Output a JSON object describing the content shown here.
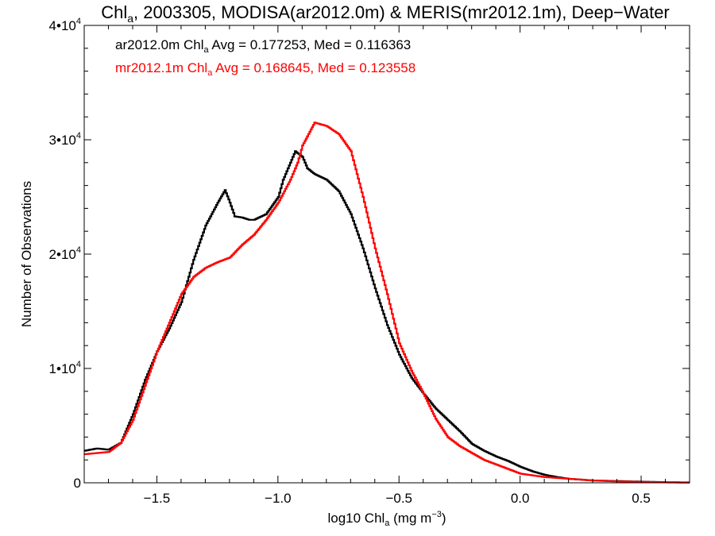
{
  "chart_data": {
    "type": "line",
    "title": {
      "pre": "Chl",
      "sub": "a",
      "post": ", 2003305, MODISA(ar2012.0m) & MERIS(mr2012.1m), Deep−Water"
    },
    "xlabel": {
      "pre": "log10 Chl",
      "sub": "a",
      "post": " (mg m",
      "sup": "−3",
      "end": ")"
    },
    "ylabel": "Number of Observations",
    "xlim": [
      -1.8,
      0.7
    ],
    "ylim": [
      0,
      40000
    ],
    "x_ticks": [
      {
        "value": -1.5,
        "label": "−1.5"
      },
      {
        "value": -1.0,
        "label": "−1.0"
      },
      {
        "value": -0.5,
        "label": "−0.5"
      },
      {
        "value": 0.0,
        "label": "0.0"
      },
      {
        "value": 0.5,
        "label": "0.5"
      }
    ],
    "y_ticks": [
      {
        "value": 0,
        "mant": "0",
        "exp": ""
      },
      {
        "value": 10000,
        "mant": "1•10",
        "exp": "4"
      },
      {
        "value": 20000,
        "mant": "2•10",
        "exp": "4"
      },
      {
        "value": 30000,
        "mant": "3•10",
        "exp": "4"
      },
      {
        "value": 40000,
        "mant": "4•10",
        "exp": "4"
      }
    ],
    "grid": false,
    "legend_placement": "top-left",
    "series": [
      {
        "name": "ar2012.0m",
        "label": {
          "pre": "ar2012.0m Chl",
          "sub": "a",
          "post": " Avg = 0.177253, Med = 0.116363"
        },
        "color": "#000000",
        "x": [
          -1.8,
          -1.75,
          -1.7,
          -1.65,
          -1.6,
          -1.55,
          -1.5,
          -1.45,
          -1.4,
          -1.35,
          -1.3,
          -1.25,
          -1.22,
          -1.2,
          -1.18,
          -1.15,
          -1.12,
          -1.1,
          -1.05,
          -1.0,
          -0.98,
          -0.95,
          -0.93,
          -0.9,
          -0.88,
          -0.85,
          -0.8,
          -0.75,
          -0.7,
          -0.65,
          -0.6,
          -0.55,
          -0.5,
          -0.45,
          -0.4,
          -0.35,
          -0.3,
          -0.25,
          -0.2,
          -0.15,
          -0.1,
          -0.05,
          0.0,
          0.05,
          0.1,
          0.15,
          0.2,
          0.3,
          0.4,
          0.5,
          0.6,
          0.7
        ],
        "y": [
          2800,
          3000,
          2900,
          3500,
          6000,
          9000,
          11500,
          13500,
          15800,
          19500,
          22500,
          24500,
          25600,
          24500,
          23300,
          23200,
          23000,
          23000,
          23500,
          25000,
          26500,
          28000,
          29000,
          28500,
          27500,
          27000,
          26500,
          25500,
          23500,
          20500,
          17000,
          13800,
          11200,
          9200,
          7800,
          6500,
          5500,
          4500,
          3400,
          2800,
          2300,
          1900,
          1400,
          1000,
          700,
          500,
          350,
          200,
          150,
          100,
          50,
          30
        ]
      },
      {
        "name": "mr2012.1m",
        "label": {
          "pre": "mr2012.1m Chl",
          "sub": "a",
          "post": " Avg = 0.168645, Med = 0.123558"
        },
        "color": "#ff0000",
        "x": [
          -1.8,
          -1.75,
          -1.7,
          -1.65,
          -1.6,
          -1.55,
          -1.5,
          -1.45,
          -1.4,
          -1.35,
          -1.3,
          -1.25,
          -1.2,
          -1.15,
          -1.1,
          -1.05,
          -1.0,
          -0.95,
          -0.92,
          -0.9,
          -0.85,
          -0.8,
          -0.75,
          -0.7,
          -0.65,
          -0.6,
          -0.55,
          -0.5,
          -0.45,
          -0.4,
          -0.35,
          -0.3,
          -0.25,
          -0.2,
          -0.15,
          -0.1,
          -0.05,
          0.0,
          0.05,
          0.1,
          0.2,
          0.3,
          0.4,
          0.5,
          0.6,
          0.7
        ],
        "y": [
          2500,
          2600,
          2700,
          3500,
          5500,
          8500,
          11500,
          14000,
          16500,
          18000,
          18800,
          19300,
          19700,
          20800,
          21700,
          23000,
          24500,
          26500,
          28000,
          29500,
          31500,
          31200,
          30500,
          29000,
          25000,
          20500,
          16500,
          12200,
          9800,
          7800,
          5600,
          4000,
          3200,
          2600,
          2000,
          1600,
          1200,
          800,
          650,
          500,
          350,
          200,
          120,
          80,
          40,
          20
        ]
      }
    ]
  }
}
